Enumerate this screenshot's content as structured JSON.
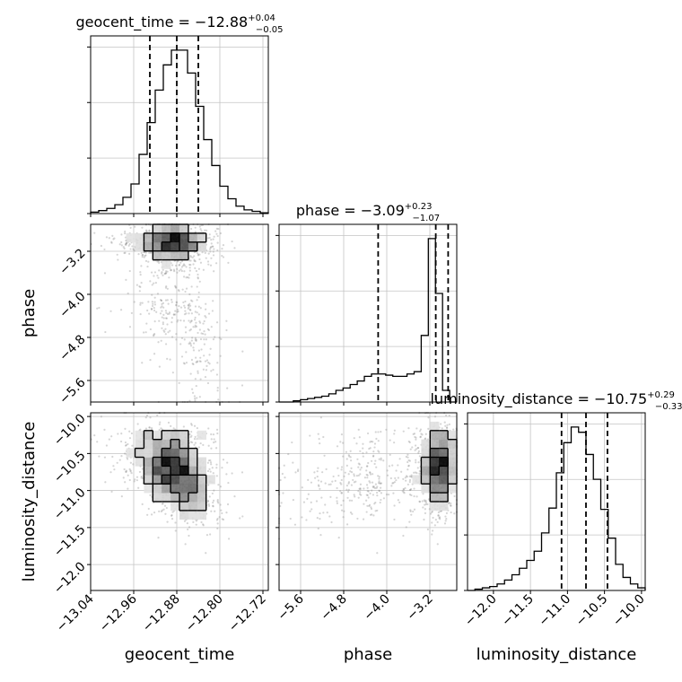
{
  "chart_data": {
    "type": "corner",
    "parameters": [
      "geocent_time",
      "phase",
      "luminosity_distance"
    ],
    "axis_labels": {
      "geocent_time": "geocent_time",
      "phase": "phase",
      "luminosity_distance": "luminosity_distance"
    },
    "titles": [
      {
        "param": "geocent_time",
        "prefix": "geocent_time = ",
        "median": "−12.88",
        "plus": "+0.04",
        "minus": "−0.05"
      },
      {
        "param": "phase",
        "prefix": "phase = ",
        "median": "−3.09",
        "plus": "+0.23",
        "minus": "−1.07"
      },
      {
        "param": "luminosity_distance",
        "prefix": "luminosity_distance = ",
        "median": "−10.75",
        "plus": "+0.29",
        "minus": "−0.33"
      }
    ],
    "ranges": {
      "geocent_time": [
        -13.04,
        -12.71
      ],
      "phase": [
        -6.0,
        -2.7
      ],
      "luminosity_distance": [
        -12.35,
        -9.95
      ]
    },
    "ticks": {
      "geocent_time": [
        -13.04,
        -12.96,
        -12.88,
        -12.8,
        -12.72
      ],
      "phase": [
        -5.6,
        -4.8,
        -4.0,
        -3.2
      ],
      "luminosity_distance": [
        -12.0,
        -11.5,
        -11.0,
        -10.5,
        -10.0
      ]
    },
    "tick_labels": {
      "geocent_time": [
        "−13.04",
        "−12.96",
        "−12.88",
        "−12.80",
        "−12.72"
      ],
      "phase": [
        "−5.6",
        "−4.8",
        "−4.0",
        "−3.2"
      ],
      "luminosity_distance": [
        "−12.0",
        "−11.5",
        "−11.0",
        "−10.5",
        "−10.0"
      ]
    },
    "quantiles": {
      "geocent_time": [
        -12.93,
        -12.88,
        -12.84
      ],
      "phase": [
        -4.16,
        -3.09,
        -2.86
      ],
      "luminosity_distance": [
        -11.08,
        -10.75,
        -10.46
      ]
    },
    "histograms": {
      "geocent_time": {
        "edges_range": [
          -13.04,
          -12.71
        ],
        "counts": [
          2,
          4,
          7,
          12,
          22,
          40,
          80,
          123,
          167,
          201,
          221,
          221,
          190,
          145,
          100,
          65,
          37,
          20,
          10,
          5,
          3,
          1
        ]
      },
      "phase": {
        "edges_range": [
          -6.0,
          -2.7
        ],
        "counts": [
          0,
          0,
          1,
          2,
          3,
          4,
          5,
          7,
          10,
          12,
          15,
          18,
          22,
          24,
          24,
          23,
          22,
          22,
          24,
          26,
          57,
          140,
          93,
          10,
          0
        ]
      },
      "luminosity_distance": {
        "edges_range": [
          -12.35,
          -9.95
        ],
        "counts": [
          0,
          1,
          2,
          3,
          5,
          8,
          12,
          17,
          23,
          30,
          44,
          63,
          90,
          113,
          125,
          121,
          104,
          85,
          62,
          40,
          20,
          10,
          5,
          2
        ]
      }
    },
    "grid": true
  }
}
